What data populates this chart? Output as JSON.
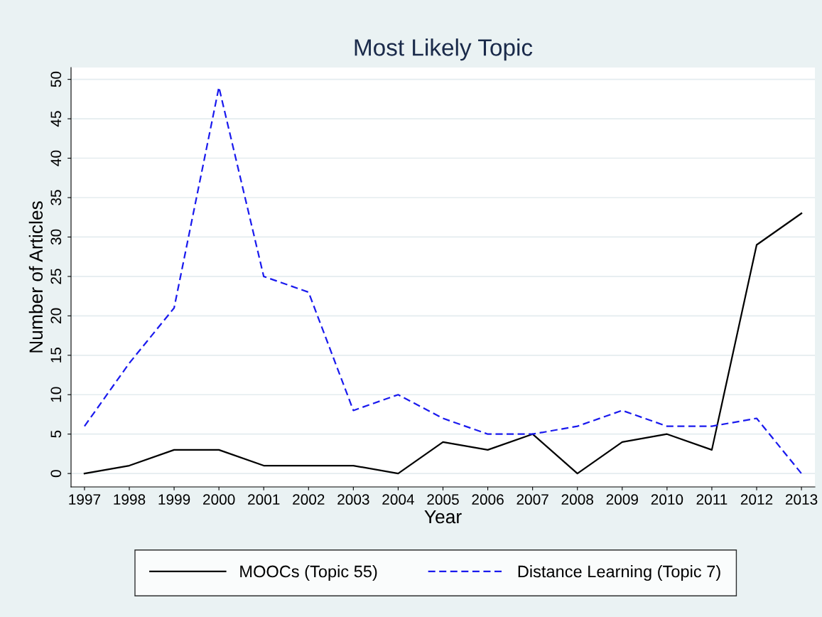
{
  "chart_data": {
    "type": "line",
    "title": "Most Likely Topic",
    "xlabel": "Year",
    "ylabel": "Number of Articles",
    "x": [
      1997,
      1998,
      1999,
      2000,
      2001,
      2002,
      2003,
      2004,
      2005,
      2006,
      2007,
      2008,
      2009,
      2010,
      2011,
      2012,
      2013
    ],
    "series": [
      {
        "name": "MOOCs (Topic 55)",
        "color": "#000000",
        "line_style": "solid",
        "values": [
          0,
          1,
          3,
          3,
          1,
          1,
          1,
          0,
          4,
          3,
          5,
          0,
          4,
          5,
          3,
          29,
          33
        ]
      },
      {
        "name": "Distance Learning (Topic 7)",
        "color": "#1a1aee",
        "line_style": "dashed",
        "values": [
          6,
          14,
          21,
          49,
          25,
          23,
          8,
          10,
          7,
          5,
          5,
          6,
          8,
          6,
          6,
          7,
          0
        ]
      }
    ],
    "xlim": [
      1996.7,
      2013.3
    ],
    "ylim": [
      -1.7,
      51.5
    ],
    "xticks": [
      1997,
      1998,
      1999,
      2000,
      2001,
      2002,
      2003,
      2004,
      2005,
      2006,
      2007,
      2008,
      2009,
      2010,
      2011,
      2012,
      2013
    ],
    "yticks": [
      0,
      5,
      10,
      15,
      20,
      25,
      30,
      35,
      40,
      45,
      50
    ],
    "grid": "y",
    "legend": "bottom",
    "marker": "none"
  }
}
